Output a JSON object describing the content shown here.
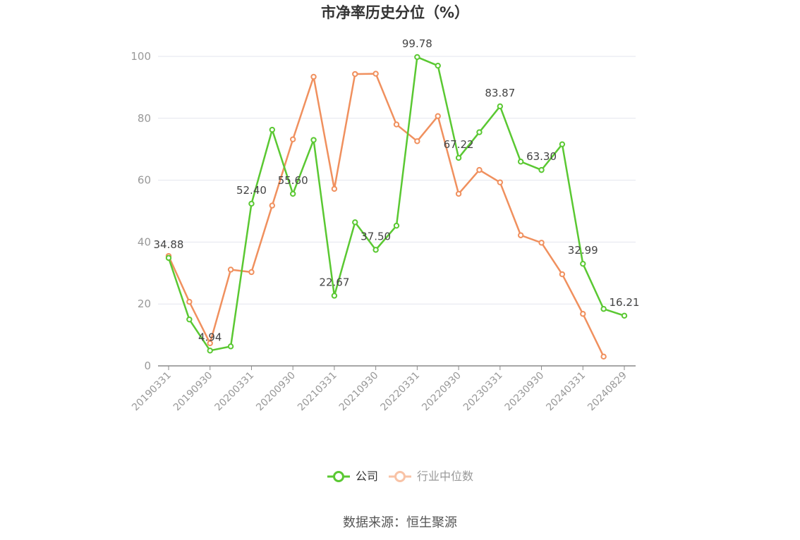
{
  "chart_data": {
    "type": "line",
    "title": "市净率历史分位（%）",
    "ylim": [
      0,
      100
    ],
    "yticks": [
      0,
      20,
      40,
      60,
      80,
      100
    ],
    "grid": true,
    "legend_position": "bottom-center",
    "x": [
      "20190331",
      "20190630",
      "20190930",
      "20191231",
      "20200331",
      "20200630",
      "20200930",
      "20201231",
      "20210331",
      "20210630",
      "20210930",
      "20211231",
      "20220331",
      "20220630",
      "20220930",
      "20221231",
      "20230331",
      "20230630",
      "20230930",
      "20231231",
      "20240331",
      "20240630",
      "20240829"
    ],
    "x_tick_labels": [
      "20190331",
      "20190930",
      "20200331",
      "20200930",
      "20210331",
      "20210930",
      "20220331",
      "20220930",
      "20230331",
      "20230930",
      "20240331",
      "20240829"
    ],
    "series": [
      {
        "name": "公司",
        "color": "#5ac832",
        "values": [
          34.88,
          15.0,
          4.94,
          6.3,
          52.4,
          76.3,
          55.6,
          73.0,
          22.67,
          46.4,
          37.5,
          45.3,
          99.78,
          97.0,
          67.22,
          75.5,
          83.87,
          66.0,
          63.3,
          71.6,
          32.99,
          18.4,
          16.21
        ],
        "labels": {
          "0": "34.88",
          "2": "4.94",
          "4": "52.40",
          "6": "55.60",
          "8": "22.67",
          "10": "37.50",
          "12": "99.78",
          "14": "67.22",
          "16": "83.87",
          "18": "63.30",
          "20": "32.99",
          "22": "16.21"
        }
      },
      {
        "name": "行业中位数",
        "color": "#f0905e",
        "values": [
          35.5,
          20.7,
          7.3,
          31.1,
          30.3,
          51.8,
          73.2,
          93.4,
          57.2,
          94.3,
          94.4,
          78.0,
          72.6,
          80.7,
          55.6,
          63.3,
          59.3,
          42.2,
          39.8,
          29.6,
          16.8,
          3.0,
          null
        ]
      }
    ]
  },
  "footer": {
    "source": "数据来源：恒生聚源"
  }
}
